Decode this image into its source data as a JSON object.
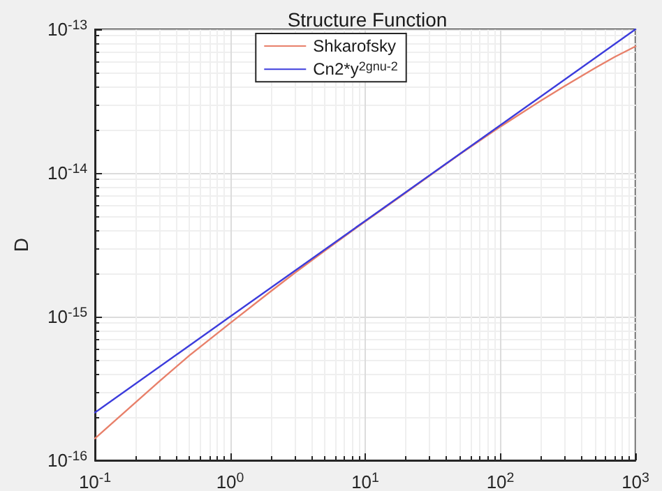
{
  "chart_data": {
    "type": "line",
    "title": "Structure Function",
    "ylabel": "D",
    "log": "xy",
    "grid": true,
    "legend": "top",
    "xlim": [
      0.1,
      1000
    ],
    "xticks": [
      {
        "value": 0.1,
        "label": "10$^{-1}$"
      },
      {
        "value": 1,
        "label": "10$^{0}$"
      },
      {
        "value": 10,
        "label": "10$^{1}$"
      },
      {
        "value": 100,
        "label": "10$^{2}$"
      },
      {
        "value": 1000,
        "label": "10$^{3}$"
      }
    ],
    "ylim": [
      1e-16,
      1e-13
    ],
    "yticks": [
      {
        "value": 1e-16,
        "label": "10$^{-16}$"
      },
      {
        "value": 1e-15,
        "label": "10$^{-15}$"
      },
      {
        "value": 1e-14,
        "label": "10$^{-14}$"
      },
      {
        "value": 1e-13,
        "label": "10$^{-13}$"
      }
    ],
    "series": [
      {
        "name": "Shkarofsky",
        "color": "#e8806a",
        "x": [
          0.1,
          0.2,
          0.3,
          0.5,
          1,
          2,
          3,
          5,
          10,
          20,
          50,
          100,
          200,
          300,
          500,
          700,
          1000
        ],
        "values": [
          1.42e-16,
          2.53e-16,
          3.55e-16,
          5.37e-16,
          9e-16,
          1.5e-15,
          2.01e-15,
          2.87e-15,
          4.6e-15,
          7.3e-15,
          1.35e-14,
          2.1e-14,
          3.19e-14,
          4.03e-14,
          5.36e-14,
          6.41e-14,
          7.6e-14
        ]
      },
      {
        "name": "Cn2*y$^{2gnu-2}$",
        "color": "#3c3cdc",
        "x": [
          0.1,
          1,
          10,
          100,
          1000
        ],
        "values": [
          2.15e-16,
          1e-15,
          4.64e-15,
          2.15e-14,
          1e-13
        ]
      }
    ]
  }
}
